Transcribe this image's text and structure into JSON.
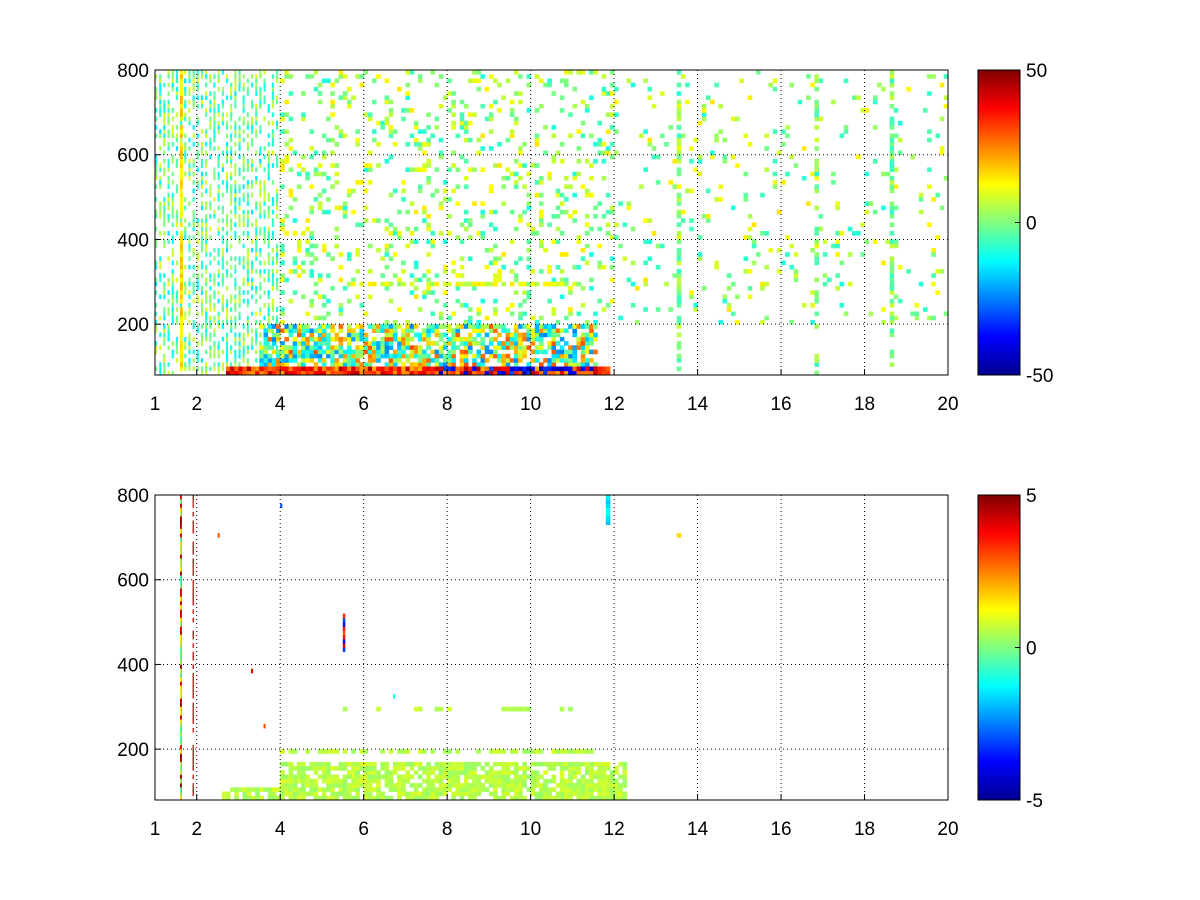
{
  "chart_data": [
    {
      "type": "heatmap",
      "title": "",
      "xlabel": "",
      "ylabel": "",
      "xlim": [
        1,
        20
      ],
      "ylim": [
        80,
        800
      ],
      "xticks": [
        1,
        2,
        4,
        6,
        8,
        10,
        12,
        14,
        16,
        18,
        20
      ],
      "yticks": [
        200,
        400,
        600,
        800
      ],
      "grid": true,
      "colormap": "jet",
      "clim": [
        -50,
        50
      ],
      "colorbar_ticks": [
        -50,
        0,
        50
      ],
      "blank_value": "NaN (white)",
      "features": [
        {
          "region": "x 2.7-11.8, y 80-100",
          "value_range": [
            20,
            45
          ],
          "note": "strong red/orange band along bottom"
        },
        {
          "region": "x 7.8-11.5, y 80-100",
          "value_range": [
            -45,
            -30
          ],
          "note": "dark blue cells at bottom"
        },
        {
          "region": "x 3.5-11.5, y 100-200",
          "value_range": [
            -25,
            30
          ],
          "note": "dense mixed band"
        },
        {
          "region": "x 1-4, y 80-800",
          "value_range": [
            -15,
            10
          ],
          "note": "dense thin vertical streaks"
        },
        {
          "region": "x 4-20, y 200-800",
          "value_range": [
            -10,
            15
          ],
          "note": "sparse scattered cells"
        },
        {
          "region": "x 1.7, y 80-800",
          "value_range": [
            10,
            20
          ],
          "note": "yellow-orange vertical line"
        }
      ]
    },
    {
      "type": "heatmap",
      "title": "",
      "xlabel": "",
      "ylabel": "",
      "xlim": [
        1,
        20
      ],
      "ylim": [
        80,
        800
      ],
      "xticks": [
        1,
        2,
        4,
        6,
        8,
        10,
        12,
        14,
        16,
        18,
        20
      ],
      "yticks": [
        200,
        400,
        600,
        800
      ],
      "grid": true,
      "colormap": "jet",
      "clim": [
        -5,
        5
      ],
      "colorbar_ticks": [
        -5,
        0,
        5
      ],
      "blank_value": "NaN (white)",
      "features": [
        {
          "region": "x 2.6-12.3, y 80-170",
          "value_range": [
            0,
            1
          ],
          "note": "light green dense block"
        },
        {
          "region": "x 4-11.5, y 180-200",
          "value_range": [
            0,
            1
          ],
          "note": "light green row"
        },
        {
          "region": "x 5.5-11, y 290-300",
          "value_range": [
            0,
            1
          ],
          "note": "sparse light green row"
        },
        {
          "region": "x 1.7, y 80-800",
          "value_range": [
            4,
            5
          ],
          "note": "dark red vertical line"
        },
        {
          "region": "x 1.9, y 80-800",
          "value_range": [
            4,
            5
          ],
          "note": "thin dark red line"
        },
        {
          "region": "x 5.6, y 430-520",
          "value_range": [
            -4,
            4
          ],
          "note": "mixed red/blue streak"
        },
        {
          "region": "x 11.8, y 730-800",
          "value_range": [
            -2,
            -1
          ],
          "note": "cyan cells"
        },
        {
          "region": "x 13.5, y 705-715",
          "value_range": [
            1,
            2
          ],
          "note": "small yellow cell"
        }
      ]
    }
  ]
}
